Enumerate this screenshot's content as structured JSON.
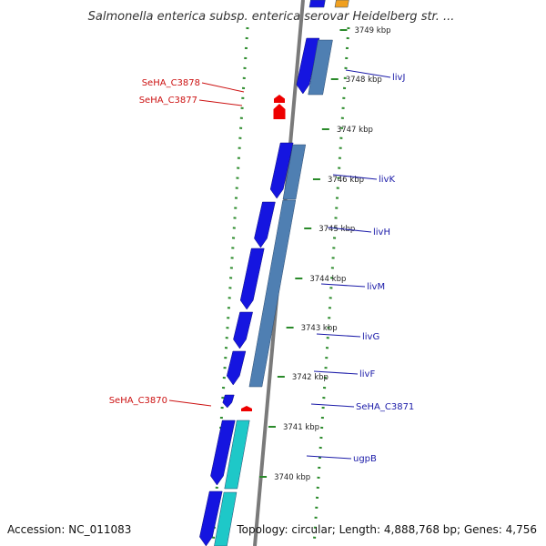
{
  "title": "Salmonella enterica subsp. enterica serovar Heidelberg str. ...",
  "footer": {
    "accession": "Accession: NC_011083",
    "topology": "Topology: circular; Length: 4,888,768 bp; Genes: 4,756"
  },
  "colors": {
    "forward_cds": "#1515e0",
    "forward_cds_alt": "#4f7fb2",
    "teal_feature": "#1ec8c8",
    "orange_feature": "#f0a020",
    "reverse_feature": "#ee0000",
    "forward_label": "#1a1aa8",
    "reverse_label": "#cc1111",
    "backbone": "#7a7a7a",
    "dotted_track": "#2a8a2a"
  },
  "kbp_ticks": [
    {
      "label": "3749 kbp"
    },
    {
      "label": "3748 kbp"
    },
    {
      "label": "3747 kbp"
    },
    {
      "label": "3746 kbp"
    },
    {
      "label": "3745 kbp"
    },
    {
      "label": "3744 kbp"
    },
    {
      "label": "3743 kbp"
    },
    {
      "label": "3742 kbp"
    },
    {
      "label": "3741 kbp"
    },
    {
      "label": "3740 kbp"
    }
  ],
  "forward_genes": [
    {
      "name": "livJ"
    },
    {
      "name": "livK"
    },
    {
      "name": "livH"
    },
    {
      "name": "livM"
    },
    {
      "name": "livG"
    },
    {
      "name": "livF"
    },
    {
      "name": "SeHA_C3871"
    },
    {
      "name": "ugpB"
    }
  ],
  "reverse_genes": [
    {
      "name": "SeHA_C3878"
    },
    {
      "name": "SeHA_C3877"
    },
    {
      "name": "SeHA_C3870"
    }
  ]
}
